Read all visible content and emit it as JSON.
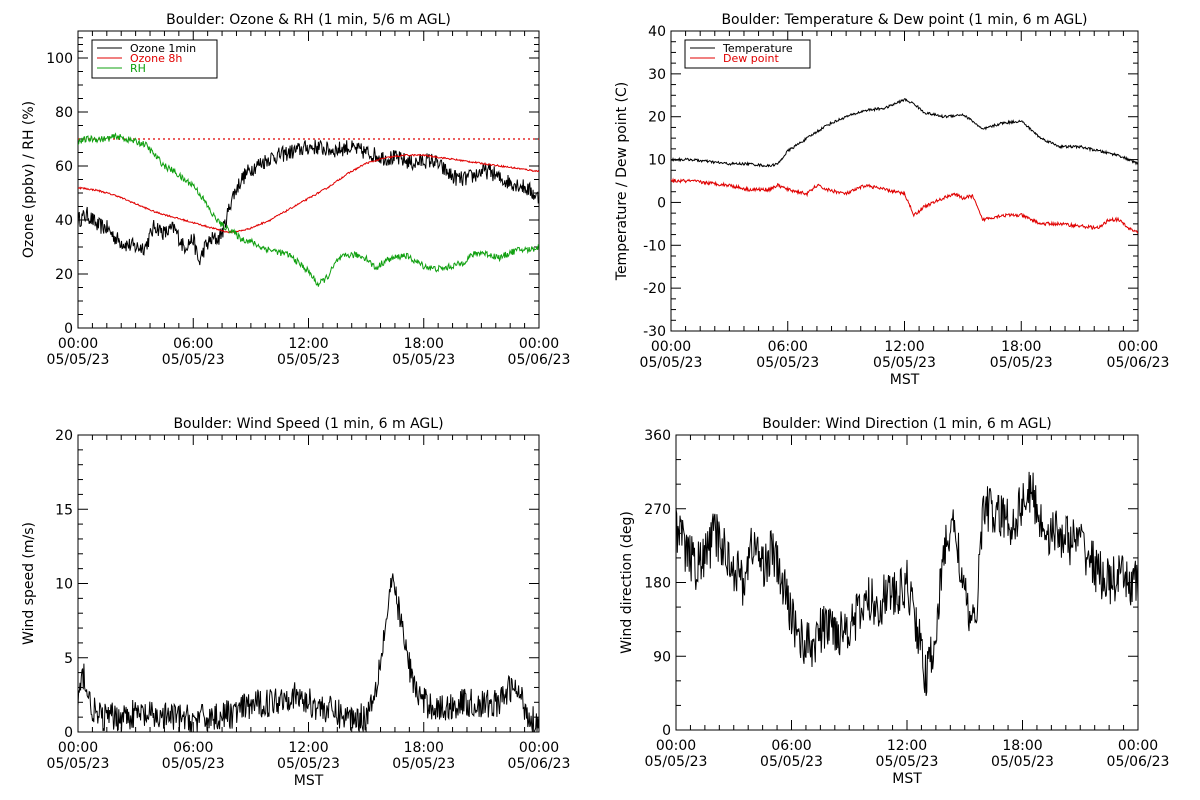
{
  "colors": {
    "black": "#000000",
    "red": "#e00000",
    "green": "#10a010",
    "background": "#ffffff"
  },
  "chart_data": [
    {
      "type": "line",
      "title": "Boulder: Ozone & RH (1 min, 5/6 m AGL)",
      "ylabel": "Ozone (ppbv) / RH (%)",
      "xlabel": "",
      "xlim": [
        0,
        24
      ],
      "ylim": [
        0,
        110
      ],
      "yticks": [
        "0",
        "20",
        "40",
        "60",
        "80",
        "100"
      ],
      "xtick_times": [
        "00:00",
        "06:00",
        "12:00",
        "18:00",
        "00:00"
      ],
      "xtick_dates": [
        "05/05/23",
        "05/05/23",
        "05/05/23",
        "05/05/23",
        "05/06/23"
      ],
      "legend": {
        "position": "top-left",
        "entries": [
          "Ozone 1min",
          "Ozone 8h",
          "RH"
        ]
      },
      "reference_line": {
        "value": 70,
        "color": "#e00000",
        "style": "dotted"
      },
      "series": [
        {
          "name": "Ozone 1min",
          "color": "#000000",
          "noise": 3.0,
          "x": [
            0,
            0.5,
            1,
            1.5,
            2,
            2.5,
            3,
            3.5,
            4,
            4.5,
            5,
            5.5,
            6,
            6.3,
            6.6,
            7,
            7.3,
            7.6,
            8,
            8.5,
            9,
            9.5,
            10,
            10.5,
            11,
            11.5,
            12,
            12.5,
            13,
            13.5,
            14,
            14.5,
            15,
            15.5,
            16,
            16.5,
            17,
            17.5,
            18,
            18.5,
            19,
            19.5,
            20,
            20.5,
            21,
            21.5,
            22,
            22.5,
            23,
            23.5,
            24
          ],
          "y": [
            40,
            42,
            38,
            37,
            33,
            31,
            30,
            30,
            38,
            35,
            37,
            30,
            33,
            24,
            30,
            33,
            33,
            37,
            48,
            55,
            59,
            61,
            63,
            64,
            65,
            66,
            67,
            67,
            66,
            66,
            67,
            66,
            65,
            64,
            63,
            63,
            62,
            61,
            62,
            62,
            59,
            56,
            55,
            56,
            58,
            58,
            55,
            54,
            53,
            51,
            48
          ]
        },
        {
          "name": "Ozone 8h",
          "color": "#e00000",
          "noise": 0.3,
          "x": [
            0,
            1,
            2,
            3,
            4,
            5,
            6,
            7,
            7.8,
            8.5,
            9,
            10,
            11,
            12,
            13,
            14,
            15,
            16,
            17,
            18,
            19,
            20,
            21,
            22,
            23,
            24
          ],
          "y": [
            52,
            51,
            49,
            46,
            43,
            41,
            39,
            37,
            35.5,
            36,
            37,
            40,
            44,
            48,
            52,
            57,
            61,
            63,
            64,
            64,
            63,
            62,
            61,
            60,
            59,
            58
          ]
        },
        {
          "name": "RH",
          "color": "#10a010",
          "noise": 1.2,
          "x": [
            0,
            0.5,
            1,
            1.5,
            2,
            2.5,
            3,
            3.5,
            4,
            4.5,
            5,
            5.5,
            6,
            6.5,
            7,
            7.5,
            8,
            8.5,
            9,
            9.5,
            10,
            10.5,
            11,
            11.5,
            12,
            12.5,
            13,
            13.5,
            14,
            14.5,
            15,
            15.5,
            16,
            16.5,
            17,
            17.5,
            18,
            18.5,
            19,
            19.5,
            20,
            20.5,
            21,
            21.5,
            22,
            22.5,
            23,
            23.5,
            24
          ],
          "y": [
            69,
            70,
            70,
            70,
            71,
            70,
            69,
            68,
            64,
            60,
            58,
            55,
            53,
            48,
            42,
            38,
            36,
            33,
            32,
            30,
            29,
            28,
            27,
            24,
            21,
            16,
            19,
            25,
            27,
            27,
            26,
            22,
            25,
            26,
            27,
            25,
            23,
            22,
            22,
            23,
            24,
            27,
            28,
            27,
            26,
            28,
            29,
            29,
            30
          ]
        }
      ]
    },
    {
      "type": "line",
      "title": "Boulder: Temperature & Dew point (1 min, 6 m AGL)",
      "ylabel": "Temperature / Dew point (C)",
      "xlabel": "MST",
      "xlim": [
        0,
        24
      ],
      "ylim": [
        -30,
        40
      ],
      "yticks": [
        "-30",
        "-20",
        "-10",
        "0",
        "10",
        "20",
        "30",
        "40"
      ],
      "xtick_times": [
        "00:00",
        "06:00",
        "12:00",
        "18:00",
        "00:00"
      ],
      "xtick_dates": [
        "05/05/23",
        "05/05/23",
        "05/05/23",
        "05/05/23",
        "05/06/23"
      ],
      "legend": {
        "position": "top-left",
        "entries": [
          "Temperature",
          "Dew point"
        ]
      },
      "series": [
        {
          "name": "Temperature",
          "color": "#000000",
          "noise": 0.3,
          "x": [
            0,
            1,
            2,
            3,
            4,
            5,
            5.5,
            6,
            7,
            8,
            9,
            10,
            11,
            11.5,
            12,
            12.5,
            13,
            14,
            15,
            15.5,
            16,
            17,
            18,
            19,
            20,
            21,
            22,
            23,
            24
          ],
          "y": [
            10,
            10,
            9.5,
            9,
            9,
            8.5,
            9,
            12,
            15,
            18,
            20,
            21.5,
            22,
            23,
            24,
            23,
            21,
            20,
            20.5,
            19,
            17,
            18.5,
            19,
            15,
            13,
            13,
            12,
            11,
            9
          ]
        },
        {
          "name": "Dew point",
          "color": "#e00000",
          "noise": 0.4,
          "x": [
            0,
            1,
            2,
            3,
            4,
            5,
            5.5,
            6,
            7,
            7.5,
            8,
            9,
            10,
            11,
            12,
            12.5,
            13,
            14,
            14.5,
            15,
            15.5,
            16,
            17,
            18,
            19,
            20,
            21,
            22,
            22.5,
            23,
            23.5,
            24
          ],
          "y": [
            5,
            5,
            4.5,
            4,
            3,
            3,
            4,
            3,
            2,
            4,
            3,
            2,
            4,
            3,
            2,
            -3,
            -1,
            1,
            2,
            1,
            1.5,
            -4,
            -3,
            -3,
            -5,
            -5,
            -5.5,
            -6,
            -4,
            -4,
            -6,
            -7
          ]
        }
      ]
    },
    {
      "type": "line",
      "title": "Boulder: Wind Speed (1 min, 6 m AGL)",
      "ylabel": "Wind speed (m/s)",
      "xlabel": "MST",
      "xlim": [
        0,
        24
      ],
      "ylim": [
        0,
        20
      ],
      "yticks": [
        "0",
        "5",
        "10",
        "15",
        "20"
      ],
      "xtick_times": [
        "00:00",
        "06:00",
        "12:00",
        "18:00",
        "00:00"
      ],
      "xtick_dates": [
        "05/05/23",
        "05/05/23",
        "05/05/23",
        "05/05/23",
        "05/06/23"
      ],
      "series": [
        {
          "name": "Wind speed",
          "color": "#000000",
          "noise": 1.0,
          "x": [
            0,
            0.3,
            0.6,
            1,
            2,
            3,
            4,
            5,
            6,
            7,
            8,
            9,
            10,
            11,
            12,
            13,
            14,
            15,
            15.5,
            16,
            16.3,
            16.6,
            17,
            17.5,
            18,
            19,
            20,
            21,
            22,
            22.5,
            23,
            23.5,
            24
          ],
          "y": [
            2,
            4,
            2,
            1,
            1,
            1.2,
            1,
            1,
            0.8,
            1,
            1.2,
            1.8,
            2,
            2.5,
            2,
            1.5,
            1,
            1,
            3,
            7,
            10,
            9,
            6,
            3,
            2,
            1.5,
            2,
            1.8,
            2,
            3,
            2.5,
            1,
            0.6
          ]
        }
      ]
    },
    {
      "type": "line",
      "title": "Boulder: Wind Direction (1 min, 6 m AGL)",
      "ylabel": "Wind direction (deg)",
      "xlabel": "MST",
      "xlim": [
        0,
        24
      ],
      "ylim": [
        0,
        360
      ],
      "yticks": [
        "0",
        "90",
        "180",
        "270",
        "360"
      ],
      "xtick_times": [
        "00:00",
        "06:00",
        "12:00",
        "18:00",
        "00:00"
      ],
      "xtick_dates": [
        "05/05/23",
        "05/05/23",
        "05/05/23",
        "05/05/23",
        "05/06/23"
      ],
      "series": [
        {
          "name": "Wind direction",
          "color": "#000000",
          "noise": 30,
          "x": [
            0,
            0.5,
            1,
            1.5,
            2,
            2.5,
            3,
            3.5,
            4,
            4.5,
            5,
            5.5,
            6,
            6.5,
            7,
            7.5,
            8,
            8.5,
            9,
            9.5,
            10,
            10.5,
            11,
            11.5,
            12,
            12.5,
            13,
            13.5,
            14,
            14.5,
            15,
            15.5,
            16,
            16.5,
            17,
            17.5,
            18,
            18.5,
            19,
            19.5,
            20,
            20.5,
            21,
            21.5,
            22,
            22.5,
            23,
            23.5,
            24
          ],
          "y": [
            250,
            220,
            200,
            210,
            240,
            220,
            200,
            180,
            230,
            200,
            220,
            180,
            140,
            110,
            100,
            120,
            130,
            120,
            130,
            140,
            160,
            150,
            170,
            160,
            180,
            130,
            60,
            120,
            230,
            250,
            160,
            120,
            280,
            260,
            260,
            250,
            280,
            290,
            250,
            240,
            240,
            230,
            230,
            210,
            190,
            180,
            185,
            180,
            180
          ]
        }
      ]
    }
  ]
}
